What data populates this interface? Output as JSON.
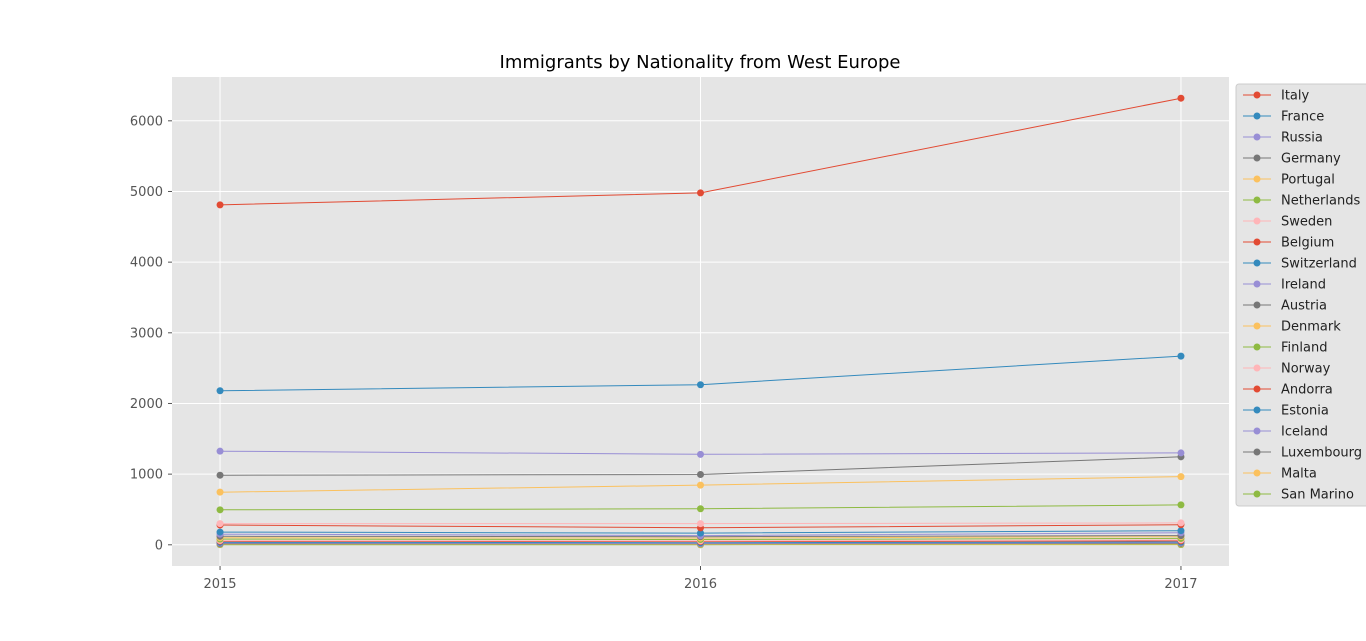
{
  "chart_data": {
    "type": "line",
    "title": "Immigrants by Nationality from West Europe",
    "xlabel": "",
    "ylabel": "",
    "x": [
      2015,
      2016,
      2017
    ],
    "xlim": [
      2014.9,
      2017.1
    ],
    "ylim": [
      -300,
      6620
    ],
    "yticks": [
      0,
      1000,
      2000,
      3000,
      4000,
      5000,
      6000
    ],
    "grid": true,
    "legend_position": "right",
    "background": "#e5e5e5",
    "series": [
      {
        "name": "Italy",
        "color": "#e24a33",
        "values": [
          4810,
          4980,
          6320
        ]
      },
      {
        "name": "France",
        "color": "#348abd",
        "values": [
          2180,
          2265,
          2670
        ]
      },
      {
        "name": "Russia",
        "color": "#988ed5",
        "values": [
          1325,
          1280,
          1300
        ]
      },
      {
        "name": "Germany",
        "color": "#777777",
        "values": [
          985,
          995,
          1245
        ]
      },
      {
        "name": "Portugal",
        "color": "#fbc15e",
        "values": [
          745,
          845,
          965
        ]
      },
      {
        "name": "Netherlands",
        "color": "#8eba42",
        "values": [
          495,
          510,
          565
        ]
      },
      {
        "name": "Sweden",
        "color": "#ffb5b8",
        "values": [
          300,
          300,
          310
        ]
      },
      {
        "name": "Belgium",
        "color": "#e24a33",
        "values": [
          280,
          240,
          285
        ]
      },
      {
        "name": "Switzerland",
        "color": "#348abd",
        "values": [
          180,
          165,
          200
        ]
      },
      {
        "name": "Ireland",
        "color": "#988ed5",
        "values": [
          150,
          130,
          170
        ]
      },
      {
        "name": "Austria",
        "color": "#777777",
        "values": [
          120,
          115,
          130
        ]
      },
      {
        "name": "Denmark",
        "color": "#fbc15e",
        "values": [
          100,
          95,
          115
        ]
      },
      {
        "name": "Finland",
        "color": "#8eba42",
        "values": [
          80,
          75,
          90
        ]
      },
      {
        "name": "Norway",
        "color": "#ffb5b8",
        "values": [
          60,
          55,
          70
        ]
      },
      {
        "name": "Andorra",
        "color": "#e24a33",
        "values": [
          50,
          45,
          55
        ]
      },
      {
        "name": "Estonia",
        "color": "#348abd",
        "values": [
          35,
          30,
          40
        ]
      },
      {
        "name": "Iceland",
        "color": "#988ed5",
        "values": [
          25,
          20,
          30
        ]
      },
      {
        "name": "Luxembourg",
        "color": "#777777",
        "values": [
          15,
          15,
          20
        ]
      },
      {
        "name": "Malta",
        "color": "#fbc15e",
        "values": [
          10,
          8,
          12
        ]
      },
      {
        "name": "San Marino",
        "color": "#8eba42",
        "values": [
          2,
          1,
          3
        ]
      }
    ]
  }
}
